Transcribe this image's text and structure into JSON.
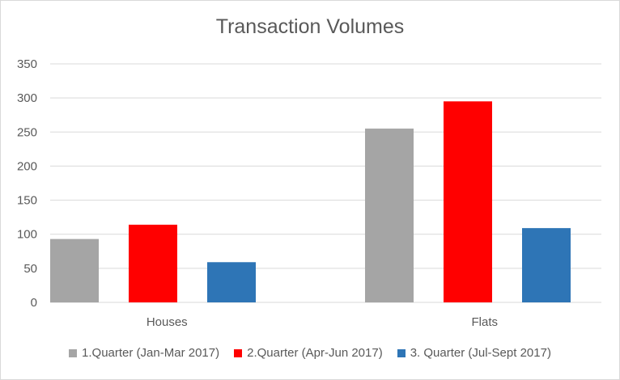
{
  "chart_data": {
    "type": "bar",
    "title": "Transaction Volumes",
    "categories": [
      "Houses",
      "Flats"
    ],
    "series": [
      {
        "name": "1.Quarter (Jan-Mar 2017)",
        "color": "#a5a5a5",
        "values": [
          93,
          255
        ]
      },
      {
        "name": "2.Quarter (Apr-Jun 2017)",
        "color": "#ff0000",
        "values": [
          114,
          295
        ]
      },
      {
        "name": "3. Quarter (Jul-Sept 2017)",
        "color": "#2e75b6",
        "values": [
          59,
          109
        ]
      }
    ],
    "ylim": [
      0,
      350
    ],
    "yticks": [
      "0",
      "50",
      "100",
      "150",
      "200",
      "250",
      "300",
      "350"
    ],
    "grid": true,
    "legend_position": "bottom",
    "gridline_color": "#d9d9d9",
    "text_color": "#595959"
  }
}
